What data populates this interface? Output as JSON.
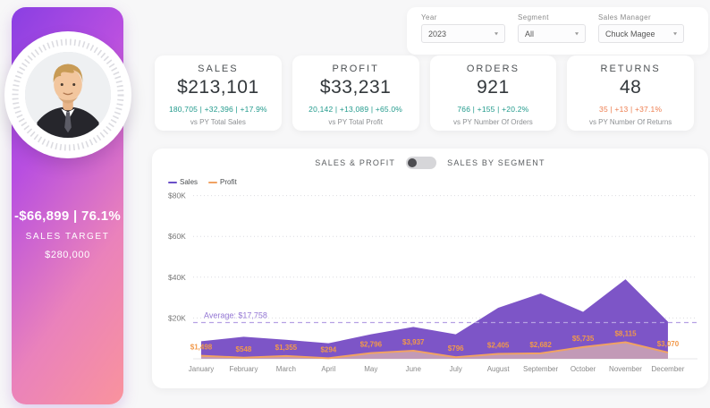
{
  "sidebar": {
    "target_line": "-$66,899 | 76.1%",
    "target_label": "SALES TARGET",
    "target_value": "$280,000",
    "gradient": [
      "#8a3fe3",
      "#f9939d"
    ]
  },
  "filters": {
    "year": {
      "label": "Year",
      "value": "2023"
    },
    "segment": {
      "label": "Segment",
      "value": "All"
    },
    "sales_manager": {
      "label": "Sales Manager",
      "value": "Chuck Magee"
    }
  },
  "kpis": [
    {
      "title": "SALES",
      "value": "$213,101",
      "metric": "180,705 | +32,396 | +17.9%",
      "sub": "vs PY Total Sales",
      "metric_color": "#219a8c"
    },
    {
      "title": "PROFIT",
      "value": "$33,231",
      "metric": "20,142 | +13,089 | +65.0%",
      "sub": "vs PY Total Profit",
      "metric_color": "#219a8c"
    },
    {
      "title": "ORDERS",
      "value": "921",
      "metric": "766 | +155 | +20.2%",
      "sub": "vs PY Number Of Orders",
      "metric_color": "#219a8c"
    },
    {
      "title": "RETURNS",
      "value": "48",
      "metric": "35 | +13 | +37.1%",
      "sub": "vs PY Number Of Returns",
      "metric_color": "#ed7d4f"
    }
  ],
  "chart_card": {
    "toggle_left": "SALES & PROFIT",
    "toggle_right": "SALES BY SEGMENT",
    "legend": [
      {
        "name": "Sales",
        "color": "#6a4fc8"
      },
      {
        "name": "Profit",
        "color": "#f0a263"
      }
    ]
  },
  "chart_data": {
    "type": "area",
    "categories": [
      "January",
      "February",
      "March",
      "April",
      "May",
      "June",
      "July",
      "August",
      "September",
      "October",
      "November",
      "December"
    ],
    "series": [
      {
        "name": "Sales",
        "color": "#7d55c7",
        "values_estimated": true,
        "values": [
          8600,
          10800,
          9300,
          7600,
          12000,
          15600,
          12000,
          25000,
          32000,
          23000,
          39000,
          18201
        ]
      },
      {
        "name": "Profit",
        "color": "#f0a263",
        "values": [
          1498,
          548,
          1355,
          294,
          2796,
          3937,
          796,
          2405,
          2682,
          5735,
          8115,
          3070
        ],
        "labels": [
          "$1,498",
          "$548",
          "$1,355",
          "$294",
          "$2,796",
          "$3,937",
          "$796",
          "$2,405",
          "$2,682",
          "$5,735",
          "$8,115",
          "$3,070"
        ]
      }
    ],
    "average": {
      "label": "Average: $17,758",
      "value": 17758,
      "color": "#9477d4",
      "line_color": "#b5a1e3"
    },
    "y_ticks": [
      {
        "label": "$80K",
        "value": 80000
      },
      {
        "label": "$60K",
        "value": 60000
      },
      {
        "label": "$40K",
        "value": 40000
      },
      {
        "label": "$20K",
        "value": 20000
      }
    ],
    "ylim": [
      0,
      80000
    ],
    "grid": "dotted",
    "legend_position": "top-left"
  }
}
